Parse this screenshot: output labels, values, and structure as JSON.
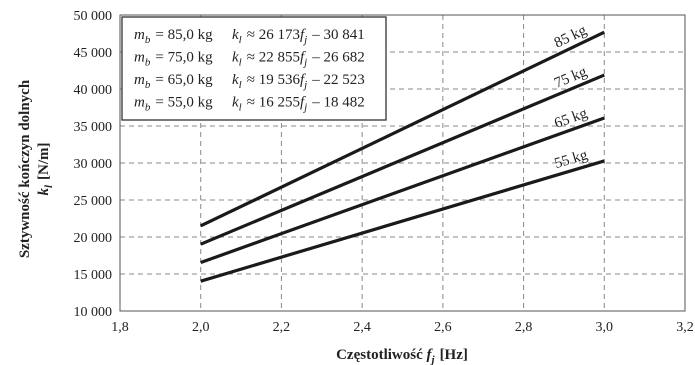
{
  "chart_data": {
    "type": "line",
    "xlabel": "Częstotliwość f_j [Hz]",
    "ylabel_lines": [
      "Sztywność kończyn dolnych",
      "k_l [N/m]"
    ],
    "xlim": [
      1.8,
      3.2
    ],
    "ylim": [
      10000,
      50000
    ],
    "xticks": [
      1.8,
      2.0,
      2.2,
      2.4,
      2.6,
      2.8,
      3.0,
      3.2
    ],
    "xtick_labels": [
      "1,8",
      "2,0",
      "2,2",
      "2,4",
      "2,6",
      "2,8",
      "3,0",
      "3,2"
    ],
    "yticks": [
      10000,
      15000,
      20000,
      25000,
      30000,
      35000,
      40000,
      45000,
      50000
    ],
    "ytick_labels": [
      "10 000",
      "15 000",
      "20 000",
      "25 000",
      "30 000",
      "35 000",
      "40 000",
      "45 000",
      "50 000"
    ],
    "grid": true,
    "legend_position": "top-left",
    "line_color": "#1a1a1a",
    "series": [
      {
        "name": "85 kg",
        "x": [
          2.0,
          3.0
        ],
        "y": [
          21505,
          47678
        ],
        "legend_mass": "m_b = 85,0 kg",
        "legend_eq": "k_l ≈ 26 173f_j – 30 841"
      },
      {
        "name": "75 kg",
        "x": [
          2.0,
          3.0
        ],
        "y": [
          19028,
          41883
        ],
        "legend_mass": "m_b = 75,0 kg",
        "legend_eq": "k_l ≈ 22 855f_j – 26 682"
      },
      {
        "name": "65 kg",
        "x": [
          2.0,
          3.0
        ],
        "y": [
          16549,
          36085
        ],
        "legend_mass": "m_b = 65,0 kg",
        "legend_eq": "k_l ≈ 19 536f_j – 22 523"
      },
      {
        "name": "55 kg",
        "x": [
          2.0,
          3.0
        ],
        "y": [
          14028,
          30283
        ],
        "legend_mass": "m_b = 55,0 kg",
        "legend_eq": "k_l ≈ 16 255f_j – 18 482"
      }
    ]
  }
}
